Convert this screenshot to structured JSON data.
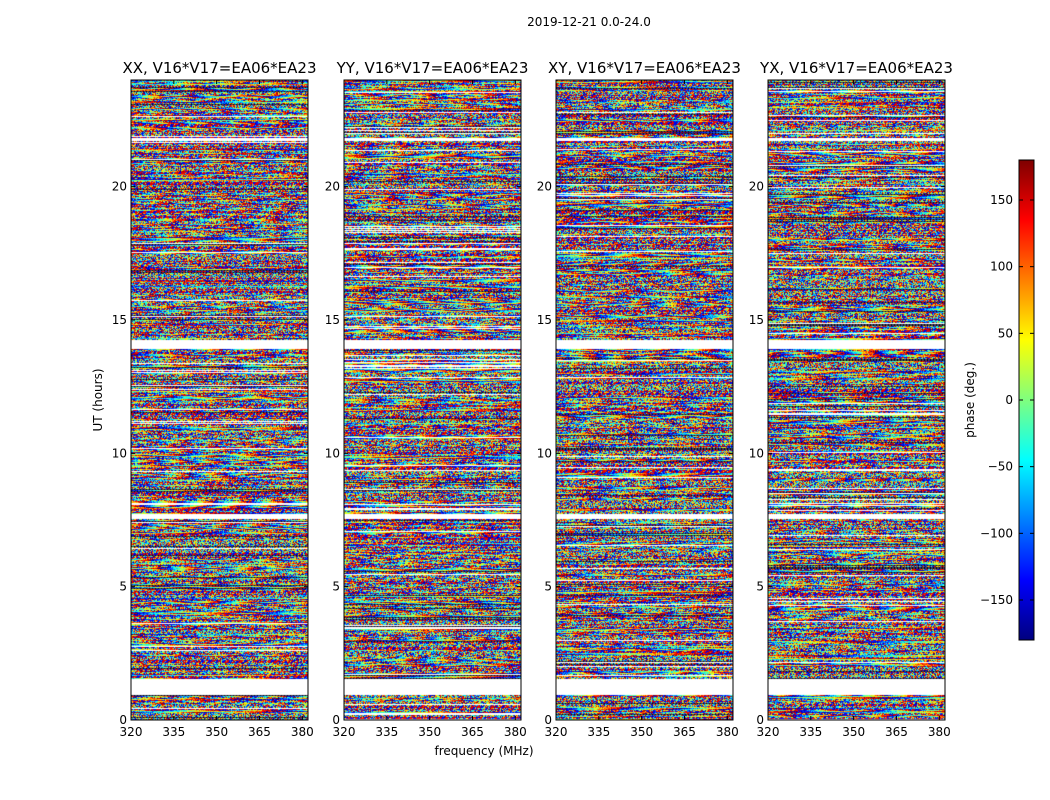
{
  "chart_data": {
    "type": "heatmap",
    "suptitle": "2019-12-21 0.0-24.0",
    "xlabel": "frequency (MHz)",
    "ylabel": "UT (hours)",
    "xlim": [
      320,
      382
    ],
    "ylim": [
      0,
      24
    ],
    "xticks": [
      320,
      335,
      350,
      365,
      380
    ],
    "yticks": [
      0,
      5,
      10,
      15,
      20
    ],
    "colormap": "jet",
    "colorbar": {
      "label": "phase (deg.)",
      "range": [
        -180,
        180
      ],
      "ticks": [
        150,
        100,
        50,
        0,
        -50,
        -100,
        -150
      ],
      "tick_labels": [
        "150",
        "100",
        "50",
        "0",
        "−50",
        "−100",
        "−150"
      ],
      "colors": [
        "#00007f",
        "#0000ff",
        "#007fff",
        "#00ffff",
        "#7fff7f",
        "#ffff00",
        "#ff7f00",
        "#ff0000",
        "#7f0000"
      ]
    },
    "panels": [
      {
        "title": "XX, V16*V17=EA06*EA23",
        "seed": 11
      },
      {
        "title": "YY, V16*V17=EA06*EA23",
        "seed": 23
      },
      {
        "title": "XY, V16*V17=EA06*EA23",
        "seed": 37
      },
      {
        "title": "YX, V16*V17=EA06*EA23",
        "seed": 53
      }
    ],
    "flagged_ut_ranges_hours": [
      [
        0.95,
        1.55
      ],
      [
        7.55,
        7.75
      ],
      [
        13.95,
        14.25
      ],
      [
        21.75,
        21.85
      ]
    ]
  }
}
